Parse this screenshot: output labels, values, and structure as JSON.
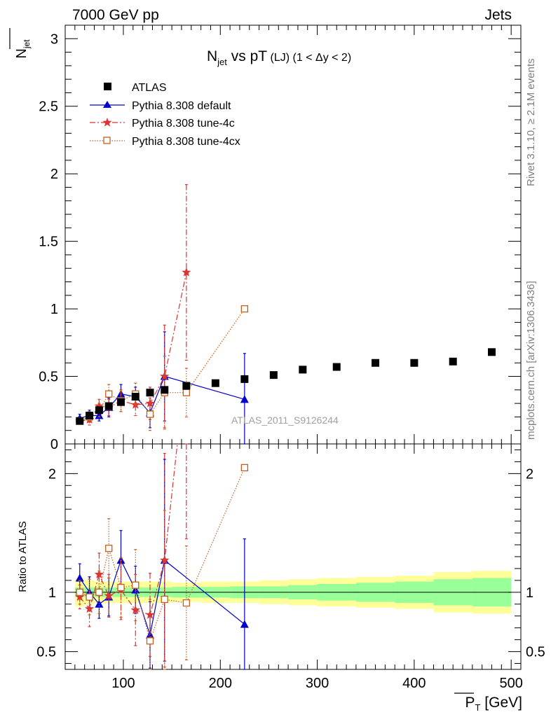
{
  "header": {
    "left": "7000 GeV pp",
    "right": "Jets"
  },
  "side_labels": {
    "rivet": "Rivet 3.1.10, ≥ 2.1M events",
    "mcplots": "mcplots.cern.ch [arXiv:1306.3436]"
  },
  "title": {
    "n": "N",
    "jet": "jet",
    "vs": " vs pT",
    "lj": " (LJ)",
    "range": " (1 < Δy < 2)"
  },
  "watermark": "ATLAS_2011_S9126244",
  "axes": {
    "ylabel_main": "N",
    "ylabel_main_sub": "jet",
    "ylabel_ratio": "Ratio to ATLAS",
    "xlabel": "P",
    "xlabel_sub": "T",
    "xlabel_unit": " [GeV]"
  },
  "colors": {
    "atlas": "#000000",
    "default": "#0000cc",
    "tune4c": "#dd3333",
    "tune4cx": "#c06020",
    "band_inner": "#99ff99",
    "band_outer": "#ffff99"
  },
  "chart_data": {
    "type": "scatter",
    "x_range": [
      40,
      510
    ],
    "main_ylim": [
      0,
      3.1
    ],
    "ratio_ylim": [
      0.35,
      2.25
    ],
    "x_ticks": [
      100,
      200,
      300,
      400,
      500
    ],
    "main_y_ticks": [
      0,
      0.5,
      1,
      1.5,
      2,
      2.5,
      3
    ],
    "ratio_y_ticks": [
      0.5,
      1,
      2
    ],
    "legend_position": "top-left",
    "atlas": {
      "name": "ATLAS",
      "x": [
        55,
        65,
        75,
        85,
        97.5,
        112.5,
        127.5,
        142.5,
        165,
        195,
        225,
        255,
        285,
        320,
        360,
        400,
        440,
        480
      ],
      "y": [
        0.17,
        0.21,
        0.25,
        0.28,
        0.31,
        0.35,
        0.38,
        0.4,
        0.43,
        0.45,
        0.48,
        0.51,
        0.55,
        0.57,
        0.6,
        0.6,
        0.61,
        0.68
      ]
    },
    "ratio_band": {
      "edges": [
        50,
        60,
        70,
        80,
        90,
        105,
        120,
        135,
        150,
        180,
        210,
        240,
        270,
        300,
        340,
        380,
        420,
        460,
        500
      ],
      "inner": [
        0.04,
        0.04,
        0.04,
        0.04,
        0.04,
        0.04,
        0.04,
        0.04,
        0.045,
        0.045,
        0.05,
        0.05,
        0.06,
        0.07,
        0.08,
        0.09,
        0.11,
        0.12
      ],
      "outer": [
        0.12,
        0.1,
        0.09,
        0.09,
        0.09,
        0.09,
        0.09,
        0.09,
        0.08,
        0.09,
        0.09,
        0.1,
        0.11,
        0.12,
        0.13,
        0.14,
        0.17,
        0.18
      ]
    },
    "series": [
      {
        "name": "Pythia 8.308 default",
        "marker": "triangle",
        "line": "solid",
        "x": [
          55,
          65,
          75,
          85,
          97.5,
          112.5,
          127.5,
          142.5,
          225
        ],
        "y": [
          0.19,
          0.21,
          0.21,
          0.27,
          0.37,
          0.35,
          0.23,
          0.5,
          0.33
        ],
        "yerr": [
          0.03,
          0.04,
          0.04,
          0.07,
          0.07,
          0.07,
          0.11,
          0.33,
          0.34
        ],
        "ratio": [
          1.12,
          1.0,
          0.9,
          0.96,
          1.27,
          1.02,
          0.64,
          1.27,
          0.73
        ],
        "ratio_err": [
          0.12,
          0.13,
          0.12,
          0.16,
          0.25,
          0.2,
          0.28,
          0.85,
          0.72
        ]
      },
      {
        "name": "Pythia 8.308 tune-4c",
        "marker": "star",
        "line": "dashdot",
        "x": [
          55,
          65,
          75,
          85,
          97.5,
          112.5,
          127.5,
          142.5,
          165
        ],
        "y": [
          0.17,
          0.18,
          0.28,
          0.27,
          0.32,
          0.29,
          0.3,
          0.5,
          1.27
        ],
        "yerr": [
          0.02,
          0.04,
          0.05,
          0.06,
          0.08,
          0.08,
          0.12,
          0.38,
          0.65
        ],
        "ratio": [
          0.96,
          0.86,
          1.15,
          0.97,
          1.02,
          0.85,
          0.81,
          1.27,
          2.95
        ],
        "ratio_err": [
          0.1,
          0.15,
          0.18,
          0.18,
          0.25,
          0.3,
          0.35,
          0.9,
          1.5
        ]
      },
      {
        "name": "Pythia 8.308 tune-4cx",
        "marker": "square-open",
        "line": "dotted",
        "x": [
          55,
          65,
          75,
          85,
          97.5,
          112.5,
          127.5,
          142.5,
          165,
          225
        ],
        "y": [
          0.17,
          0.2,
          0.25,
          0.37,
          0.32,
          0.37,
          0.22,
          0.38,
          0.38,
          1.0
        ],
        "yerr": [
          0.02,
          0.04,
          0.05,
          0.07,
          0.08,
          0.08,
          0.12,
          0.27,
          0.18,
          0.0
        ],
        "ratio": [
          1.0,
          0.96,
          1.0,
          1.37,
          1.04,
          1.06,
          0.59,
          0.94,
          0.91,
          2.05
        ],
        "ratio_err": [
          0.1,
          0.15,
          0.18,
          0.25,
          0.25,
          0.3,
          0.35,
          0.75,
          0.48,
          0.0
        ]
      }
    ]
  }
}
